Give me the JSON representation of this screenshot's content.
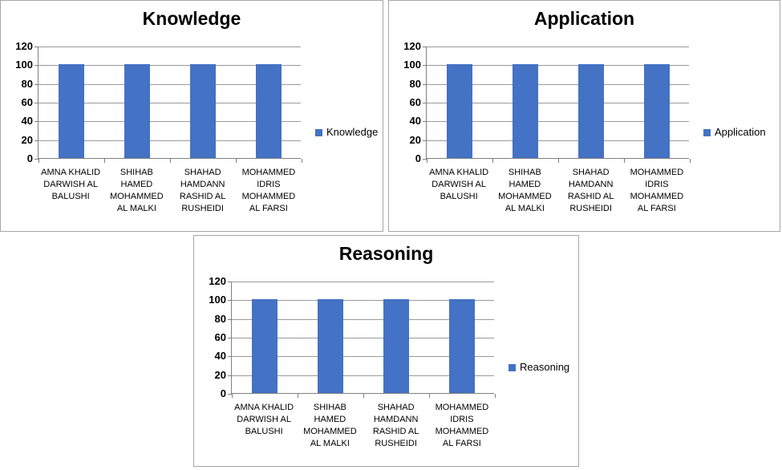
{
  "colors": {
    "bar": "#4472c4",
    "gridline": "#9a9a9a",
    "axis": "#808080",
    "chart_border": "#a6a6a6",
    "text": "#000000",
    "background": "#ffffff"
  },
  "chart_data": [
    {
      "type": "bar",
      "title": "Knowledge",
      "legend": "Knowledge",
      "legend_position": "right",
      "categories": [
        "AMNA KHALID DARWISH AL BALUSHI",
        "SHIHAB HAMED MOHAMMED AL MALKI",
        "SHAHAD HAMDANN RASHID AL RUSHEIDI",
        "MOHAMMED IDRIS MOHAMMED AL FARSI"
      ],
      "category_lines": [
        [
          "AMNA KHALID",
          "DARWISH AL",
          "BALUSHI"
        ],
        [
          "SHIHAB",
          "HAMED",
          "MOHAMMED",
          "AL MALKI"
        ],
        [
          "SHAHAD",
          "HAMDANN",
          "RASHID AL",
          "RUSHEIDI"
        ],
        [
          "MOHAMMED",
          "IDRIS",
          "MOHAMMED",
          "AL FARSI"
        ]
      ],
      "values": [
        100,
        100,
        100,
        100
      ],
      "ylim": [
        0,
        120
      ],
      "yticks": [
        0,
        20,
        40,
        60,
        80,
        100,
        120
      ],
      "grid": true,
      "xlabel": "",
      "ylabel": ""
    },
    {
      "type": "bar",
      "title": "Application",
      "legend": "Application",
      "legend_position": "right",
      "categories": [
        "AMNA KHALID DARWISH AL BALUSHI",
        "SHIHAB HAMED MOHAMMED AL MALKI",
        "SHAHAD HAMDANN RASHID AL RUSHEIDI",
        "MOHAMMED IDRIS MOHAMMED AL FARSI"
      ],
      "category_lines": [
        [
          "AMNA KHALID",
          "DARWISH AL",
          "BALUSHI"
        ],
        [
          "SHIHAB",
          "HAMED",
          "MOHAMMED",
          "AL MALKI"
        ],
        [
          "SHAHAD",
          "HAMDANN",
          "RASHID AL",
          "RUSHEIDI"
        ],
        [
          "MOHAMMED",
          "IDRIS",
          "MOHAMMED",
          "AL FARSI"
        ]
      ],
      "values": [
        100,
        100,
        100,
        100
      ],
      "ylim": [
        0,
        120
      ],
      "yticks": [
        0,
        20,
        40,
        60,
        80,
        100,
        120
      ],
      "grid": true,
      "xlabel": "",
      "ylabel": ""
    },
    {
      "type": "bar",
      "title": "Reasoning",
      "legend": "Reasoning",
      "legend_position": "right",
      "categories": [
        "AMNA KHALID DARWISH AL BALUSHI",
        "SHIHAB HAMED MOHAMMED AL MALKI",
        "SHAHAD HAMDANN RASHID AL RUSHEIDI",
        "MOHAMMED IDRIS MOHAMMED AL FARSI"
      ],
      "category_lines": [
        [
          "AMNA KHALID",
          "DARWISH AL",
          "BALUSHI"
        ],
        [
          "SHIHAB",
          "HAMED",
          "MOHAMMED",
          "AL MALKI"
        ],
        [
          "SHAHAD",
          "HAMDANN",
          "RASHID AL",
          "RUSHEIDI"
        ],
        [
          "MOHAMMED",
          "IDRIS",
          "MOHAMMED",
          "AL FARSI"
        ]
      ],
      "values": [
        100,
        100,
        100,
        100
      ],
      "ylim": [
        0,
        120
      ],
      "yticks": [
        0,
        20,
        40,
        60,
        80,
        100,
        120
      ],
      "grid": true,
      "xlabel": "",
      "ylabel": ""
    }
  ]
}
